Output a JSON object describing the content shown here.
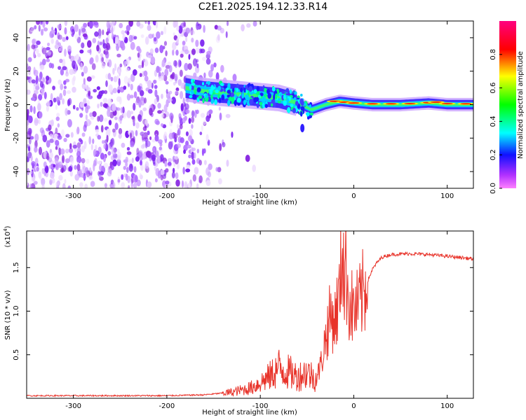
{
  "title": "C2E1.2025.194.12.33.R14",
  "colors": {
    "snr_line": "#e8332a",
    "speckle": "#8a2be2"
  },
  "chart_data": [
    {
      "type": "heatmap",
      "xlabel": "Height of straight line (km)",
      "ylabel": "Frequency (Hz)",
      "xlim": [
        -350,
        128
      ],
      "ylim": [
        -50,
        50
      ],
      "x_ticks": [
        -300,
        -200,
        -100,
        0,
        100
      ],
      "y_ticks": [
        -40,
        -20,
        0,
        20,
        40
      ],
      "colorbar": {
        "label": "Normalized spectral amplitude",
        "range": [
          0,
          1
        ],
        "ticks": [
          "0.0",
          "0.2",
          "0.4",
          "0.6",
          "0.8"
        ],
        "colormap": "rainbow (magenta-blue-cyan-green-yellow-red-pink)"
      },
      "features": {
        "noise_region_x": [
          -350,
          -140
        ],
        "signal_track": {
          "x": [
            -180,
            -160,
            -140,
            -120,
            -100,
            -80,
            -60,
            -45,
            -30,
            -15,
            0,
            20,
            50,
            80,
            100,
            128
          ],
          "freq": [
            10,
            8,
            7,
            6,
            5,
            4,
            1,
            -3,
            0,
            2,
            1,
            0,
            0,
            1,
            0,
            0
          ]
        }
      }
    },
    {
      "type": "line",
      "xlabel": "Height of straight line (km)",
      "ylabel": "SNR (10 * v/v)",
      "yscale_label": "(x10^4)",
      "xlim": [
        -350,
        128
      ],
      "ylim": [
        0,
        1.92
      ],
      "x_ticks": [
        -300,
        -200,
        -100,
        0,
        100
      ],
      "y_ticks": [
        0.5,
        1.0,
        1.5
      ],
      "y_tick_labels": [
        "0.5",
        "1.0",
        "1.5"
      ],
      "series": [
        {
          "x": [
            -350,
            -300,
            -250,
            -200,
            -160,
            -130,
            -110,
            -100,
            -90,
            -80,
            -70,
            -60,
            -50,
            -40,
            -35,
            -30,
            -25,
            -20,
            -15,
            -12,
            -10,
            -8,
            -5,
            0,
            5,
            10,
            15,
            20,
            25,
            30,
            40,
            60,
            80,
            100,
            110,
            128
          ],
          "values": [
            0.03,
            0.03,
            0.03,
            0.03,
            0.04,
            0.07,
            0.12,
            0.18,
            0.25,
            0.35,
            0.3,
            0.25,
            0.3,
            0.22,
            0.4,
            0.7,
            0.95,
            0.9,
            1.2,
            1.9,
            1.3,
            1.5,
            1.1,
            1.0,
            1.05,
            1.2,
            1.35,
            1.48,
            1.56,
            1.62,
            1.65,
            1.66,
            1.65,
            1.63,
            1.62,
            1.6
          ]
        }
      ]
    }
  ]
}
